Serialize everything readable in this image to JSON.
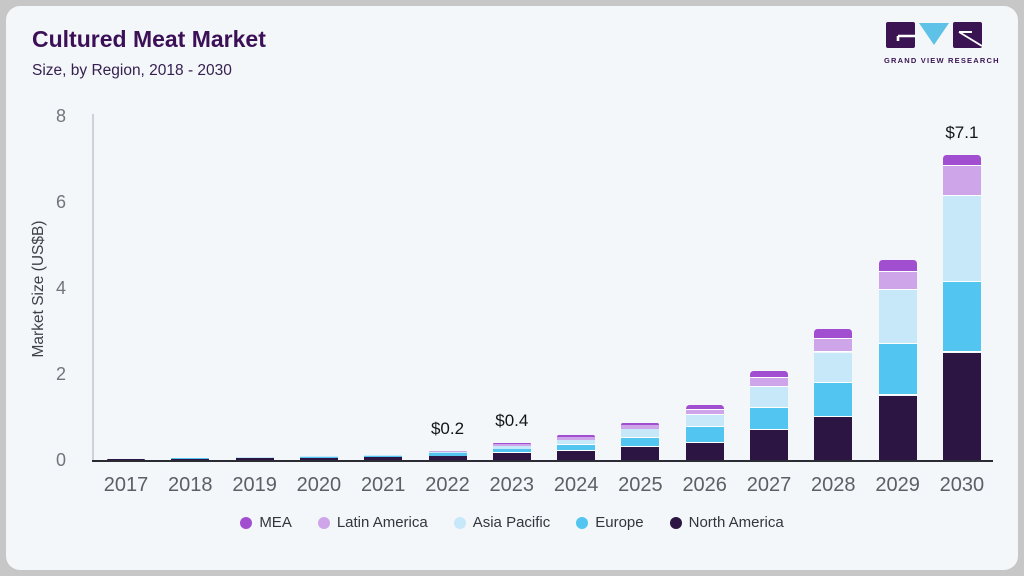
{
  "header": {
    "title": "Cultured Meat Market",
    "subtitle": "Size, by Region, 2018 - 2030"
  },
  "logo": {
    "name": "gvr-logo",
    "text": "GRAND VIEW RESEARCH",
    "brand_purple": "#3a1453",
    "brand_blue": "#5ec2e8"
  },
  "chart_data": {
    "type": "bar",
    "stacked": true,
    "title": "Cultured Meat Market",
    "subtitle": "Size, by Region, 2018 - 2030",
    "xlabel": "",
    "ylabel": "Market Size (US$B)",
    "ylim": [
      0,
      8
    ],
    "yticks": [
      0,
      2,
      4,
      6,
      8
    ],
    "grid": false,
    "legend_position": "bottom",
    "categories": [
      "2017",
      "2018",
      "2019",
      "2020",
      "2021",
      "2022",
      "2023",
      "2024",
      "2025",
      "2026",
      "2027",
      "2028",
      "2029",
      "2030"
    ],
    "series": [
      {
        "name": "North America",
        "color": "#2c1443",
        "values": [
          0.02,
          0.03,
          0.04,
          0.05,
          0.07,
          0.1,
          0.16,
          0.22,
          0.3,
          0.4,
          0.7,
          1.0,
          1.5,
          2.5
        ]
      },
      {
        "name": "Europe",
        "color": "#52c5f0",
        "values": [
          0,
          0.01,
          0.01,
          0.02,
          0.03,
          0.06,
          0.1,
          0.12,
          0.21,
          0.36,
          0.5,
          0.8,
          1.2,
          1.65
        ]
      },
      {
        "name": "Asia Pacific",
        "color": "#c7e8f8",
        "values": [
          0,
          0,
          0.01,
          0.01,
          0.02,
          0.03,
          0.07,
          0.12,
          0.21,
          0.28,
          0.5,
          0.7,
          1.25,
          2.0
        ]
      },
      {
        "name": "Latin America",
        "color": "#cfa5e9",
        "values": [
          0,
          0,
          0,
          0,
          0,
          0.01,
          0.04,
          0.07,
          0.09,
          0.12,
          0.21,
          0.32,
          0.42,
          0.68
        ]
      },
      {
        "name": "MEA",
        "color": "#a14fd0",
        "values": [
          0,
          0,
          0,
          0,
          0,
          0,
          0.03,
          0.04,
          0.05,
          0.13,
          0.15,
          0.23,
          0.27,
          0.27
        ]
      }
    ],
    "annotations": [
      {
        "category": "2022",
        "label": "$0.2"
      },
      {
        "category": "2023",
        "label": "$0.4"
      },
      {
        "category": "2030",
        "label": "$7.1"
      }
    ]
  }
}
